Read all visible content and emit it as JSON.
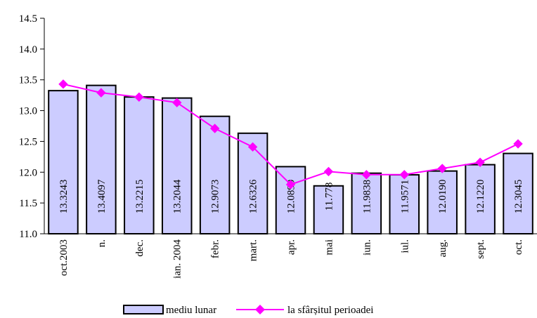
{
  "chart_data": {
    "type": "bar",
    "title": "",
    "xlabel": "",
    "ylabel": "",
    "ylim": [
      11.0,
      14.5
    ],
    "yticks": [
      11.0,
      11.5,
      12.0,
      12.5,
      13.0,
      13.5,
      14.0,
      14.5
    ],
    "ytick_labels": [
      "11.0",
      "11.5",
      "12.0",
      "12.5",
      "13.0",
      "13.5",
      "14.0",
      "14.5"
    ],
    "grid": false,
    "legend_position": "bottom",
    "categories": [
      "oct.2003",
      "n.",
      "dec.",
      "ian. 2004",
      "febr.",
      "mart.",
      "apr.",
      "mai",
      "iun.",
      "iul.",
      "aug.",
      "sept.",
      "oct."
    ],
    "series": [
      {
        "name": "mediu lunar",
        "type": "bar",
        "color": "#ccccff",
        "values": [
          13.3243,
          13.4097,
          13.2215,
          13.2044,
          12.9073,
          12.6326,
          12.0899,
          11.778,
          11.9838,
          11.9571,
          12.019,
          12.122,
          12.3045
        ],
        "labels": [
          "13.3243",
          "13.4097",
          "13.2215",
          "13.2044",
          "12.9073",
          "12.6326",
          "12.0899",
          "11.778",
          "11.9838",
          "11.9571",
          "12.0190",
          "12.1220",
          "12.3045"
        ]
      },
      {
        "name": "la sfârșitul perioadei",
        "type": "line",
        "color": "#ff00ff",
        "marker": "diamond",
        "values": [
          13.43,
          13.29,
          13.22,
          13.13,
          12.71,
          12.41,
          11.8,
          12.01,
          11.96,
          11.96,
          12.06,
          12.16,
          12.46
        ]
      }
    ]
  }
}
